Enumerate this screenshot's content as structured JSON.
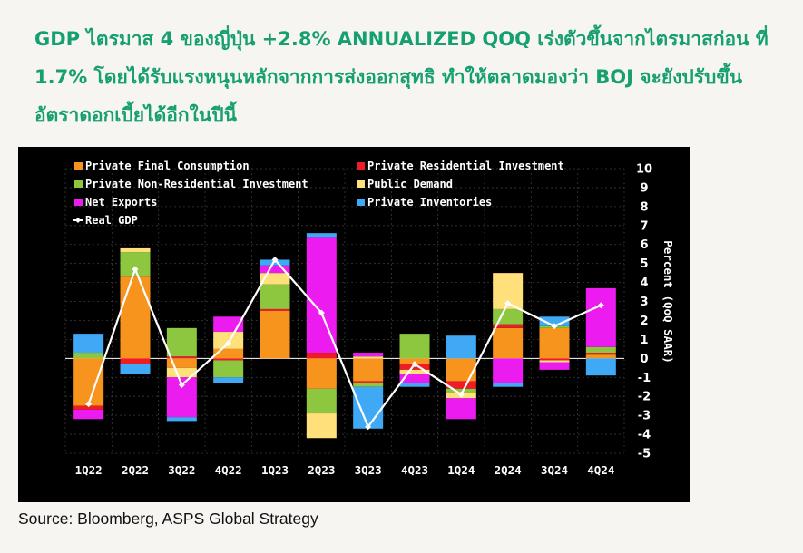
{
  "headline": {
    "line1": "GDP ไตรมาส 4 ของญี่ปุ่น +2.8% ANNUALIZED QOQ เร่งตัวขึ้นจากไตรมาสก่อน ที่",
    "line2": "1.7% โดยได้รับแรงหนุนหลักจากการส่งออกสุทธิ ทำให้ตลาดมองว่า BOJ จะยังปรับขึ้น",
    "line3": "อัตราดอกเบี้ยได้อีกในปีนี้"
  },
  "source": "Source: Bloomberg, ASPS Global Strategy",
  "colors": {
    "headline": "#16a070",
    "background": "#000000",
    "axis_text": "#ffffff",
    "grid": "#3a3a3a"
  },
  "chart_data": {
    "type": "bar",
    "stacked": true,
    "categories": [
      "1Q22",
      "2Q22",
      "3Q22",
      "4Q22",
      "1Q23",
      "2Q23",
      "3Q23",
      "4Q23",
      "1Q24",
      "2Q24",
      "3Q24",
      "4Q24"
    ],
    "ylabel": "Percent (QoQ SAAR)",
    "ylim": [
      -5,
      10
    ],
    "yticks": [
      10,
      9,
      8,
      7,
      6,
      5,
      4,
      3,
      2,
      1,
      0,
      -1,
      -2,
      -3,
      -4,
      -5
    ],
    "grid": true,
    "legend_position": "top-left",
    "series": [
      {
        "name": "Private Final Consumption",
        "color": "#f7941d",
        "values": [
          -2.5,
          4.3,
          -0.5,
          0.5,
          2.5,
          -1.6,
          -1.2,
          -0.3,
          -1.2,
          1.6,
          1.6,
          0.2
        ]
      },
      {
        "name": "Private Residential Investment",
        "color": "#ee1c25",
        "values": [
          -0.2,
          -0.3,
          0.1,
          -0.1,
          0.1,
          0.3,
          -0.1,
          -0.3,
          -0.4,
          0.2,
          -0.1,
          0.1
        ]
      },
      {
        "name": "Private Non-Residential Investment",
        "color": "#8dc63f",
        "values": [
          0.3,
          1.3,
          1.5,
          -0.9,
          1.3,
          -1.3,
          -0.2,
          1.3,
          -0.2,
          0.8,
          0.1,
          0.3
        ]
      },
      {
        "name": "Public Demand",
        "color": "#ffe07a",
        "values": [
          0.0,
          0.2,
          -0.5,
          0.9,
          0.6,
          -1.3,
          0.1,
          -0.2,
          -0.3,
          1.9,
          -0.1,
          0.0
        ]
      },
      {
        "name": "Net Exports",
        "color": "#ec1cf0",
        "values": [
          -0.5,
          0.0,
          -2.1,
          0.8,
          0.4,
          6.1,
          0.2,
          -0.5,
          -1.1,
          -1.3,
          -0.4,
          3.1
        ]
      },
      {
        "name": "Private Inventories",
        "color": "#3fa9f5",
        "values": [
          1.0,
          -0.5,
          -0.2,
          -0.3,
          0.3,
          0.2,
          -2.2,
          -0.2,
          1.2,
          -0.2,
          0.5,
          -0.9
        ]
      }
    ],
    "line_series": {
      "name": "Real GDP",
      "color": "#ffffff",
      "values": [
        -2.4,
        4.7,
        -1.4,
        0.8,
        5.2,
        2.4,
        -3.6,
        -0.3,
        -1.9,
        2.9,
        1.7,
        2.8
      ]
    }
  }
}
